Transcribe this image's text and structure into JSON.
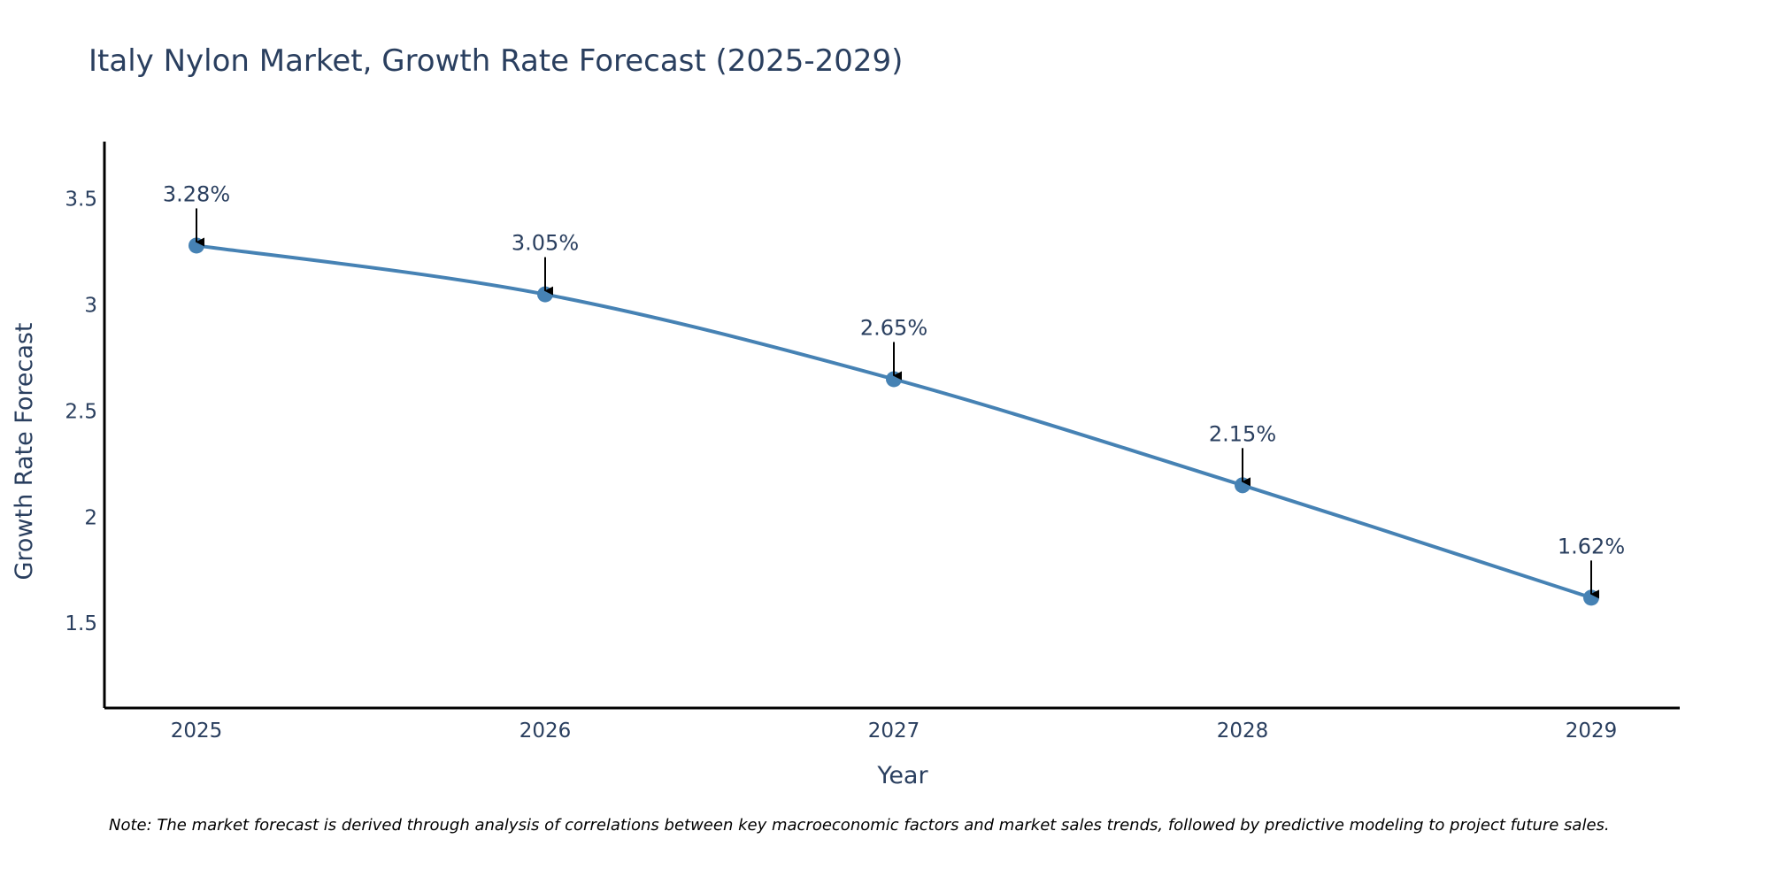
{
  "colors": {
    "series_line": "#4682b4",
    "marker": "#4682b4",
    "axis": "#000000",
    "text": "#2a3f5f",
    "arrow": "#000000"
  },
  "chart_data": {
    "type": "line",
    "title": "Italy Nylon Market, Growth Rate Forecast (2025-2029)",
    "xlabel": "Year",
    "ylabel": "Growth Rate Forecast",
    "categories": [
      "2025",
      "2026",
      "2027",
      "2028",
      "2029"
    ],
    "series": [
      {
        "name": "Growth Rate Forecast",
        "values": [
          3.28,
          3.05,
          2.65,
          2.15,
          1.62
        ]
      }
    ],
    "annotations": [
      "3.28%",
      "3.05%",
      "2.65%",
      "2.15%",
      "1.62%"
    ],
    "ylim": [
      1.1,
      3.77
    ],
    "yticks": [
      1.5,
      2,
      2.5,
      3,
      3.5
    ],
    "ytick_labels": [
      "1.5",
      "2",
      "2.5",
      "3",
      "3.5"
    ],
    "grid": false,
    "line_shape": "spline",
    "note": "Note: The market forecast is derived through analysis of correlations between key macroeconomic factors and market sales trends, followed by predictive modeling to project future sales."
  }
}
